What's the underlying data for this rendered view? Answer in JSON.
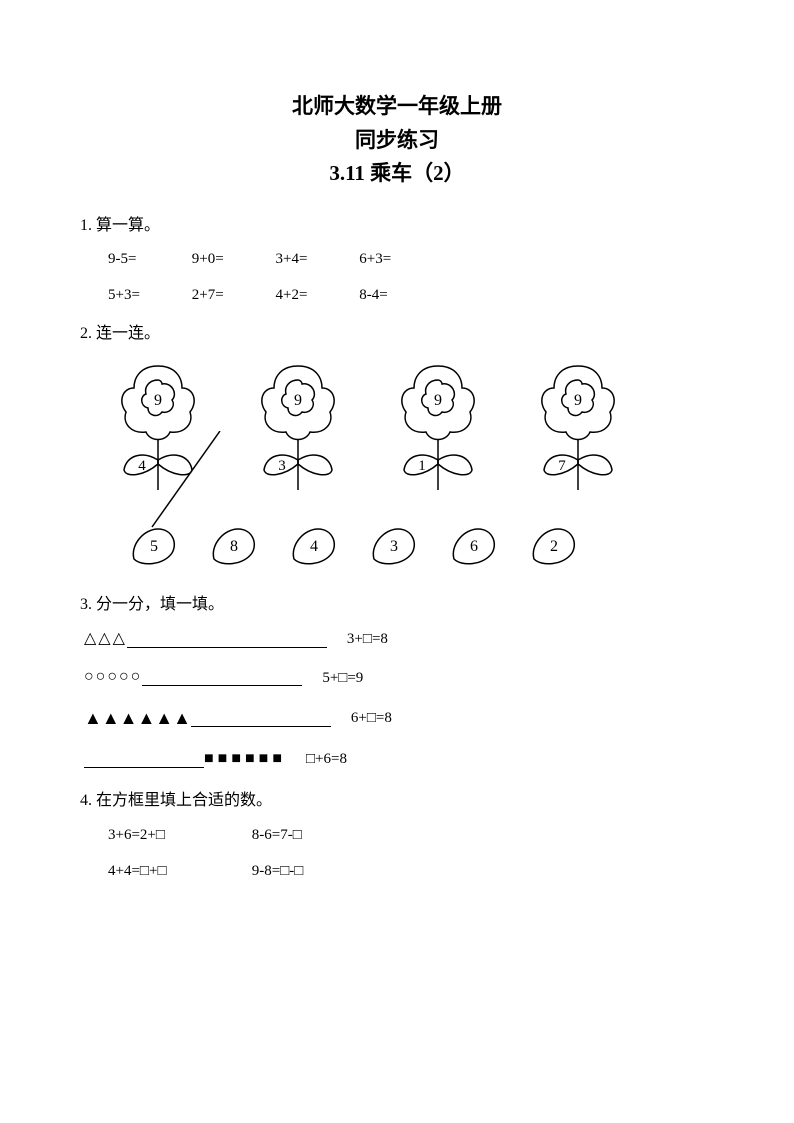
{
  "title": {
    "line1": "北师大数学一年级上册",
    "line2": "同步练习",
    "line3": "3.11 乘车（2）"
  },
  "q1": {
    "label": "1. 算一算。",
    "row1": [
      "9-5=",
      "9+0=",
      "3+4=",
      "6+3="
    ],
    "row2": [
      "5+3=",
      "2+7=",
      "4+2=",
      "8-4="
    ]
  },
  "q2": {
    "label": "2. 连一连。",
    "flowers": [
      {
        "petal": "9",
        "leaf": "4"
      },
      {
        "petal": "9",
        "leaf": "3"
      },
      {
        "petal": "9",
        "leaf": "1"
      },
      {
        "petal": "9",
        "leaf": "7"
      }
    ],
    "leaves": [
      "5",
      "8",
      "4",
      "3",
      "6",
      "2"
    ],
    "stroke": "#000000",
    "stroke_width": 1.5
  },
  "q3": {
    "label": "3. 分一分，填一填。",
    "rows": [
      {
        "shapes": "△△△",
        "shapes_filled": false,
        "blank_width": 200,
        "blank_after": true,
        "eq": "3+□=8"
      },
      {
        "shapes": "○○○○○",
        "shapes_filled": false,
        "blank_width": 160,
        "blank_after": true,
        "eq": "5+□=9"
      },
      {
        "shapes": "▲▲▲▲▲▲",
        "shapes_filled": true,
        "blank_width": 140,
        "blank_after": true,
        "eq": "6+□=8"
      },
      {
        "shapes": "■■■■■■",
        "shapes_filled": true,
        "blank_width": 120,
        "blank_after": false,
        "eq": "□+6=8"
      }
    ]
  },
  "q4": {
    "label": "4. 在方框里填上合适的数。",
    "row1": [
      "3+6=2+□",
      "8-6=7-□"
    ],
    "row2": [
      "4+4=□+□",
      "9-8=□-□"
    ]
  },
  "colors": {
    "text": "#000000",
    "bg": "#ffffff"
  }
}
